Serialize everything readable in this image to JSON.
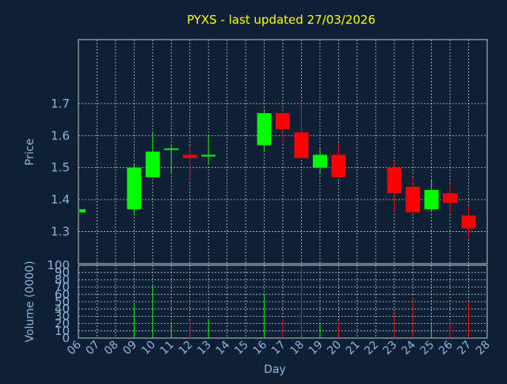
{
  "chart_data": [
    {
      "type": "candlestick",
      "title": "PYXS - last updated 27/03/2026",
      "ylabel": "Price",
      "ylim": [
        1.2,
        1.9
      ],
      "yticks": [
        1.3,
        1.4,
        1.5,
        1.6,
        1.7
      ],
      "grid": true,
      "up_color": "#00ff00",
      "down_color": "#ff0000",
      "candles": [
        {
          "day": 6,
          "open": 1.36,
          "high": 1.37,
          "low": 1.36,
          "close": 1.37
        },
        {
          "day": 9,
          "open": 1.37,
          "high": 1.51,
          "low": 1.35,
          "close": 1.5
        },
        {
          "day": 10,
          "open": 1.47,
          "high": 1.61,
          "low": 1.47,
          "close": 1.55
        },
        {
          "day": 11,
          "open": 1.56,
          "high": 1.57,
          "low": 1.48,
          "close": 1.56
        },
        {
          "day": 12,
          "open": 1.54,
          "high": 1.57,
          "low": 1.46,
          "close": 1.53
        },
        {
          "day": 13,
          "open": 1.54,
          "high": 1.6,
          "low": 1.51,
          "close": 1.54
        },
        {
          "day": 16,
          "open": 1.57,
          "high": 1.68,
          "low": 1.55,
          "close": 1.67
        },
        {
          "day": 17,
          "open": 1.67,
          "high": 1.68,
          "low": 1.58,
          "close": 1.62
        },
        {
          "day": 18,
          "open": 1.61,
          "high": 1.7,
          "low": 1.53,
          "close": 1.53
        },
        {
          "day": 19,
          "open": 1.5,
          "high": 1.56,
          "low": 1.48,
          "close": 1.54
        },
        {
          "day": 20,
          "open": 1.54,
          "high": 1.58,
          "low": 1.47,
          "close": 1.47
        },
        {
          "day": 23,
          "open": 1.5,
          "high": 1.52,
          "low": 1.36,
          "close": 1.42
        },
        {
          "day": 24,
          "open": 1.44,
          "high": 1.47,
          "low": 1.36,
          "close": 1.36
        },
        {
          "day": 25,
          "open": 1.37,
          "high": 1.46,
          "low": 1.36,
          "close": 1.43
        },
        {
          "day": 26,
          "open": 1.42,
          "high": 1.45,
          "low": 1.36,
          "close": 1.39
        },
        {
          "day": 27,
          "open": 1.35,
          "high": 1.38,
          "low": 1.28,
          "close": 1.31
        }
      ]
    },
    {
      "type": "bar",
      "ylabel": "Volume (0000)",
      "xlabel": "Day",
      "ylim": [
        0,
        100
      ],
      "yticks": [
        0,
        10,
        20,
        30,
        40,
        50,
        60,
        70,
        80,
        90,
        100
      ],
      "categories": [
        "06",
        "07",
        "08",
        "09",
        "10",
        "11",
        "12",
        "13",
        "14",
        "15",
        "16",
        "17",
        "18",
        "19",
        "20",
        "21",
        "22",
        "23",
        "24",
        "25",
        "26",
        "27",
        "28"
      ],
      "bars": [
        {
          "day": 6,
          "value": 1,
          "color": "#00ff00"
        },
        {
          "day": 9,
          "value": 45,
          "color": "#00ff00"
        },
        {
          "day": 10,
          "value": 73,
          "color": "#00ff00"
        },
        {
          "day": 11,
          "value": 21,
          "color": "#00ff00"
        },
        {
          "day": 12,
          "value": 24,
          "color": "#ff0000"
        },
        {
          "day": 13,
          "value": 26,
          "color": "#00ff00"
        },
        {
          "day": 16,
          "value": 60,
          "color": "#00ff00"
        },
        {
          "day": 17,
          "value": 26,
          "color": "#ff0000"
        },
        {
          "day": 18,
          "value": 96,
          "color": "#ff0000"
        },
        {
          "day": 19,
          "value": 20,
          "color": "#00ff00"
        },
        {
          "day": 20,
          "value": 22,
          "color": "#ff0000"
        },
        {
          "day": 23,
          "value": 33,
          "color": "#ff0000"
        },
        {
          "day": 24,
          "value": 57,
          "color": "#ff0000"
        },
        {
          "day": 25,
          "value": 21,
          "color": "#00ff00"
        },
        {
          "day": 26,
          "value": 20,
          "color": "#ff0000"
        },
        {
          "day": 27,
          "value": 50,
          "color": "#ff0000"
        }
      ]
    }
  ]
}
